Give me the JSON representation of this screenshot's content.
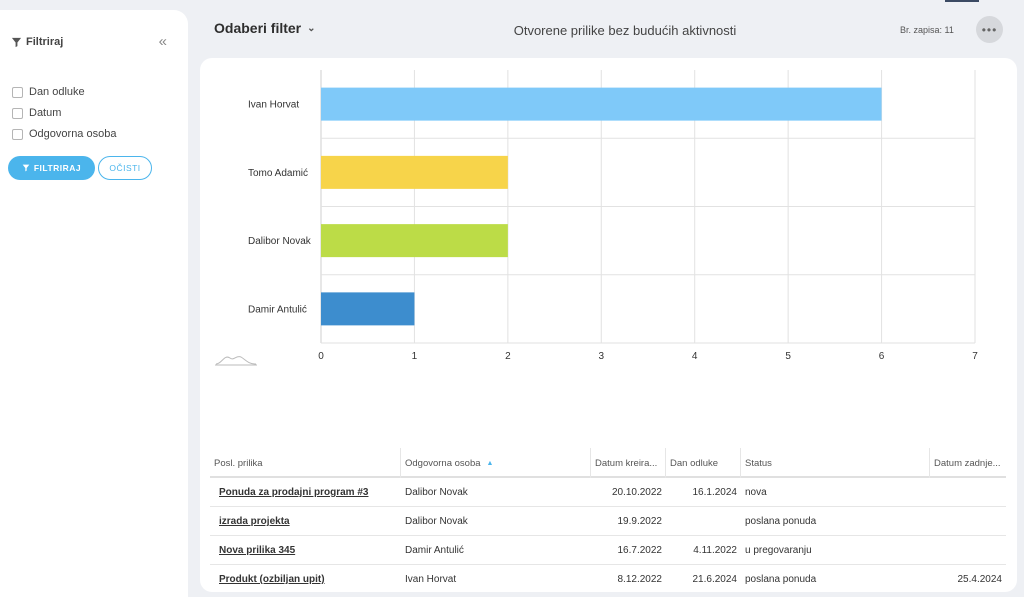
{
  "sidebar": {
    "title": "Filtriraj",
    "filters": [
      {
        "label": "Dan odluke"
      },
      {
        "label": "Datum"
      },
      {
        "label": "Odgovorna osoba"
      }
    ],
    "filter_button": "FILTRIRAJ",
    "clear_button": "OČISTI"
  },
  "header": {
    "filter_select": "Odaberi filter",
    "title": "Otvorene prilike bez budućih aktivnosti",
    "record_count": "Br. zapisa: 11",
    "more": "•••"
  },
  "chart_data": {
    "type": "bar",
    "orientation": "horizontal",
    "categories": [
      "Ivan Horvat",
      "Tomo Adamić",
      "Dalibor Novak",
      "Damir Antulić"
    ],
    "values": [
      6,
      2,
      2,
      1
    ],
    "colors": [
      "#7fc9f9",
      "#f7d44a",
      "#bcdc47",
      "#3d8dce"
    ],
    "xlim": [
      0,
      7
    ],
    "xticks": [
      0,
      1,
      2,
      3,
      4,
      5,
      6,
      7
    ],
    "grid": true
  },
  "table": {
    "columns": [
      "Posl. prilika",
      "Odgovorna osoba",
      "Datum kreira...",
      "Dan odluke",
      "Status",
      "Datum zadnje..."
    ],
    "rows": [
      {
        "prilika": "Ponuda za prodajni program #3",
        "osoba": "Dalibor Novak",
        "kreirano": "20.10.2022",
        "odluka": "16.1.2024",
        "status": "nova",
        "zadnje": ""
      },
      {
        "prilika": "izrada projekta",
        "osoba": "Dalibor Novak",
        "kreirano": "19.9.2022",
        "odluka": "",
        "status": "poslana ponuda",
        "zadnje": ""
      },
      {
        "prilika": "Nova prilika 345",
        "osoba": "Damir Antulić",
        "kreirano": "16.7.2022",
        "odluka": "4.11.2022",
        "status": "u pregovaranju",
        "zadnje": ""
      },
      {
        "prilika": "Produkt (ozbiljan upit)",
        "osoba": "Ivan Horvat",
        "kreirano": "8.12.2022",
        "odluka": "21.6.2024",
        "status": "poslana ponuda",
        "zadnje": "25.4.2024"
      }
    ]
  }
}
